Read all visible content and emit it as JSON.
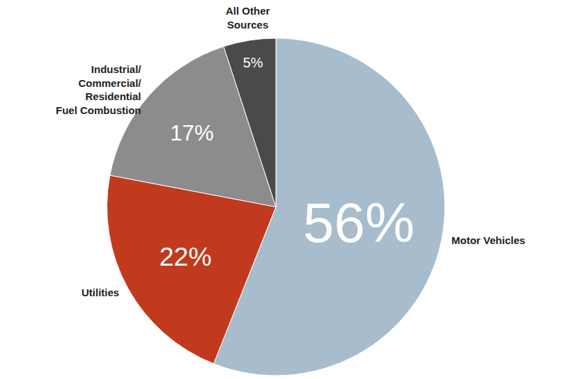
{
  "chart_data": {
    "type": "pie",
    "categories": [
      "Motor Vehicles",
      "Utilities",
      "Industrial/ Commercial/ Residential Fuel Combustion",
      "All Other Sources"
    ],
    "values": [
      56,
      22,
      17,
      5
    ],
    "value_labels": [
      "56%",
      "22%",
      "17%",
      "5%"
    ],
    "colors": [
      "#a7bccc",
      "#c23a1e",
      "#8c8c8c",
      "#4a4a4a"
    ],
    "data_labels": true
  }
}
